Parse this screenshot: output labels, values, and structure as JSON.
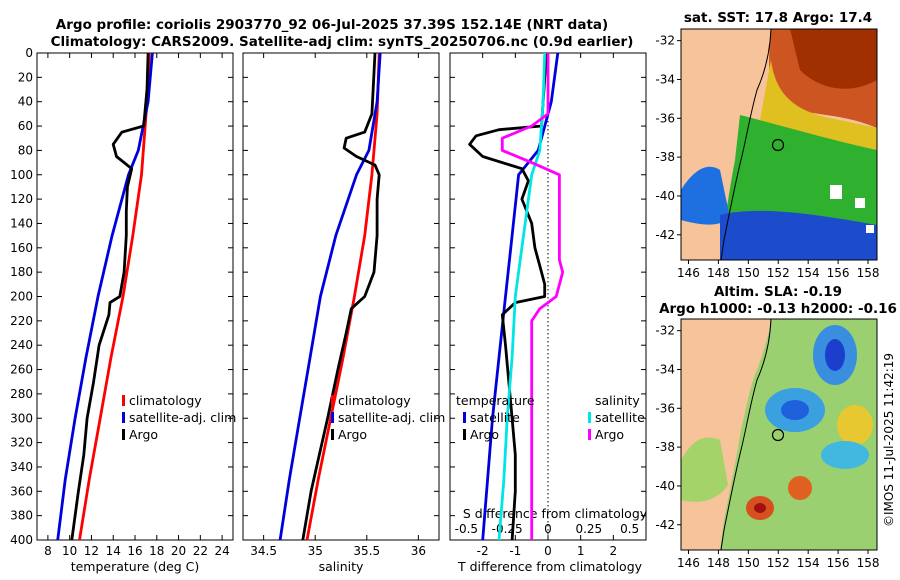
{
  "header": {
    "line1": "Argo profile: coriolis 2903770_92 06-Jul-2025 37.39S 152.14E (NRT data)",
    "line2": "Climatology: CARS2009. Satellite-adj clim: synTS_20250706.nc (0.9d earlier)"
  },
  "maps": {
    "sst_title": "sat. SST: 17.8 Argo: 17.4",
    "sla_title1": "Altim. SLA: -0.19",
    "sla_title2": "Argo h1000: -0.13 h2000: -0.16",
    "lat_ticks": [
      "-32",
      "-34",
      "-36",
      "-38",
      "-40",
      "-42"
    ],
    "lon_ticks": [
      "146",
      "148",
      "150",
      "152",
      "154",
      "156",
      "158"
    ],
    "argo_position": {
      "lon": 152.14,
      "lat": -37.39
    }
  },
  "copyright": "©IMOS 11-Jul-2025 11:42:19",
  "colors": {
    "climatology": "#ff0000",
    "satellite": "#0000dd",
    "argo": "#000000",
    "salinity_sat": "#00e5e5",
    "salinity_argo": "#ff00ff",
    "land": "#f7c39a"
  },
  "chart_data": [
    {
      "type": "line",
      "name": "temperature",
      "xlabel": "temperature (deg C)",
      "ylabel": "depth",
      "xlim": [
        7,
        25
      ],
      "ylim": [
        0,
        400
      ],
      "xticks": [
        "8",
        "10",
        "12",
        "14",
        "16",
        "18",
        "20",
        "22",
        "24"
      ],
      "yticks": [
        "0",
        "20",
        "40",
        "60",
        "80",
        "100",
        "120",
        "140",
        "160",
        "180",
        "200",
        "220",
        "240",
        "260",
        "280",
        "300",
        "320",
        "340",
        "360",
        "380",
        "400"
      ],
      "legend": [
        "climatology",
        "satellite-adj. clim",
        "Argo"
      ],
      "series": [
        {
          "name": "climatology",
          "depth": [
            0,
            40,
            100,
            150,
            200,
            250,
            300,
            350,
            400
          ],
          "values": [
            17.3,
            17.1,
            16.6,
            15.8,
            14.9,
            13.8,
            12.8,
            11.8,
            10.9
          ]
        },
        {
          "name": "satellite-adj. clim",
          "depth": [
            0,
            40,
            80,
            100,
            150,
            200,
            250,
            300,
            350,
            400
          ],
          "values": [
            17.6,
            17.2,
            16.3,
            15.4,
            13.9,
            12.6,
            11.5,
            10.5,
            9.6,
            8.9
          ]
        },
        {
          "name": "Argo",
          "depth": [
            0,
            30,
            60,
            65,
            75,
            85,
            95,
            110,
            130,
            150,
            180,
            200,
            205,
            215,
            240,
            270,
            300,
            330,
            360,
            400
          ],
          "values": [
            17.2,
            17.1,
            16.8,
            14.8,
            14.0,
            14.3,
            15.7,
            15.3,
            15.2,
            15.2,
            15.0,
            14.6,
            13.7,
            13.6,
            12.7,
            12.2,
            11.6,
            11.3,
            10.8,
            10.2
          ]
        }
      ]
    },
    {
      "type": "line",
      "name": "salinity",
      "xlabel": "salinity",
      "ylabel": "depth",
      "xlim": [
        34.3,
        36.2
      ],
      "ylim": [
        0,
        400
      ],
      "xticks": [
        "34.5",
        "35",
        "35.5",
        "36"
      ],
      "legend": [
        "climatology",
        "satellite-adj. clim",
        "Argo"
      ],
      "series": [
        {
          "name": "climatology",
          "depth": [
            0,
            50,
            100,
            150,
            200,
            250,
            300,
            350,
            400
          ],
          "values": [
            35.62,
            35.6,
            35.55,
            35.48,
            35.38,
            35.27,
            35.15,
            35.03,
            34.92
          ]
        },
        {
          "name": "satellite-adj. clim",
          "depth": [
            0,
            40,
            80,
            100,
            150,
            200,
            250,
            300,
            350,
            400
          ],
          "values": [
            35.63,
            35.6,
            35.52,
            35.4,
            35.2,
            35.05,
            34.95,
            34.85,
            34.75,
            34.66
          ]
        },
        {
          "name": "Argo",
          "depth": [
            0,
            50,
            65,
            70,
            78,
            85,
            92,
            100,
            120,
            150,
            180,
            200,
            210,
            230,
            260,
            300,
            330,
            360,
            400
          ],
          "values": [
            35.58,
            35.55,
            35.48,
            35.3,
            35.28,
            35.4,
            35.58,
            35.62,
            35.6,
            35.6,
            35.57,
            35.48,
            35.35,
            35.3,
            35.22,
            35.12,
            35.04,
            34.96,
            34.88
          ]
        }
      ]
    },
    {
      "type": "line",
      "name": "difference_from_climatology",
      "xlabel": "T difference from climatology",
      "xlabel_top": "S difference from climatology",
      "xlim": [
        -3,
        3
      ],
      "xticks": [
        "-2",
        "-1",
        "0",
        "1",
        "2"
      ],
      "sticks": [
        "-0.5",
        "-0.25",
        "0",
        "0.25",
        "0.5"
      ],
      "legend_t": [
        "temperature",
        "satellite",
        "Argo"
      ],
      "legend_s": [
        "salinity",
        "satellite",
        "Argo"
      ],
      "series": [
        {
          "name": "temperature satellite",
          "depth": [
            0,
            40,
            80,
            100,
            150,
            200,
            250,
            300,
            350,
            400
          ],
          "values": [
            0.3,
            0.1,
            -0.3,
            -0.9,
            -1.1,
            -1.3,
            -1.5,
            -1.7,
            -1.85,
            -2.0
          ]
        },
        {
          "name": "temperature Argo",
          "depth": [
            0,
            60,
            63,
            68,
            75,
            85,
            95,
            105,
            120,
            140,
            160,
            180,
            190,
            200,
            205,
            215,
            240,
            270,
            300,
            330,
            360,
            400
          ],
          "values": [
            -0.05,
            -0.2,
            -1.5,
            -2.2,
            -2.4,
            -2.0,
            -0.8,
            -0.6,
            -0.8,
            -0.5,
            -0.4,
            -0.2,
            -0.1,
            -0.1,
            -1.0,
            -1.4,
            -1.3,
            -1.2,
            -1.1,
            -1.0,
            -1.0,
            -1.1
          ]
        },
        {
          "name": "salinity satellite",
          "depth": [
            0,
            40,
            80,
            100,
            150,
            200,
            250,
            300,
            350,
            400
          ],
          "values": [
            -0.02,
            -0.03,
            -0.05,
            -0.1,
            -0.15,
            -0.2,
            -0.22,
            -0.25,
            -0.27,
            -0.3
          ]
        },
        {
          "name": "salinity Argo",
          "depth": [
            0,
            50,
            60,
            70,
            80,
            90,
            100,
            130,
            150,
            170,
            180,
            200,
            210,
            220,
            300,
            400
          ],
          "values": [
            0.0,
            0.0,
            -0.1,
            -0.28,
            -0.28,
            -0.1,
            0.07,
            0.07,
            0.07,
            0.07,
            0.09,
            0.05,
            -0.05,
            -0.1,
            -0.1,
            -0.1
          ]
        }
      ]
    }
  ]
}
